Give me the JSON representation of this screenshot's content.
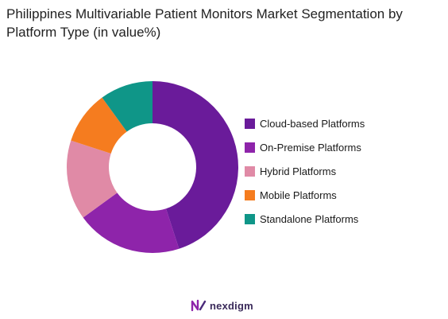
{
  "chart_data": {
    "type": "pie",
    "donut": true,
    "title": "Philippines Multivariable Patient Monitors Market Segmentation by Platform Type (in value%)",
    "legend_position": "right",
    "categories": [
      "Cloud-based Platforms",
      "On-Premise Platforms",
      "Hybrid Platforms",
      "Mobile Platforms",
      "Standalone Platforms"
    ],
    "values": [
      45,
      20,
      15,
      10,
      10
    ],
    "colors": [
      "#6a1b9a",
      "#8e24aa",
      "#e08aa6",
      "#f57c1f",
      "#0f9688"
    ]
  },
  "brand": {
    "name": "nexdigm",
    "logo_icon": "nexdigm-logo-icon"
  }
}
